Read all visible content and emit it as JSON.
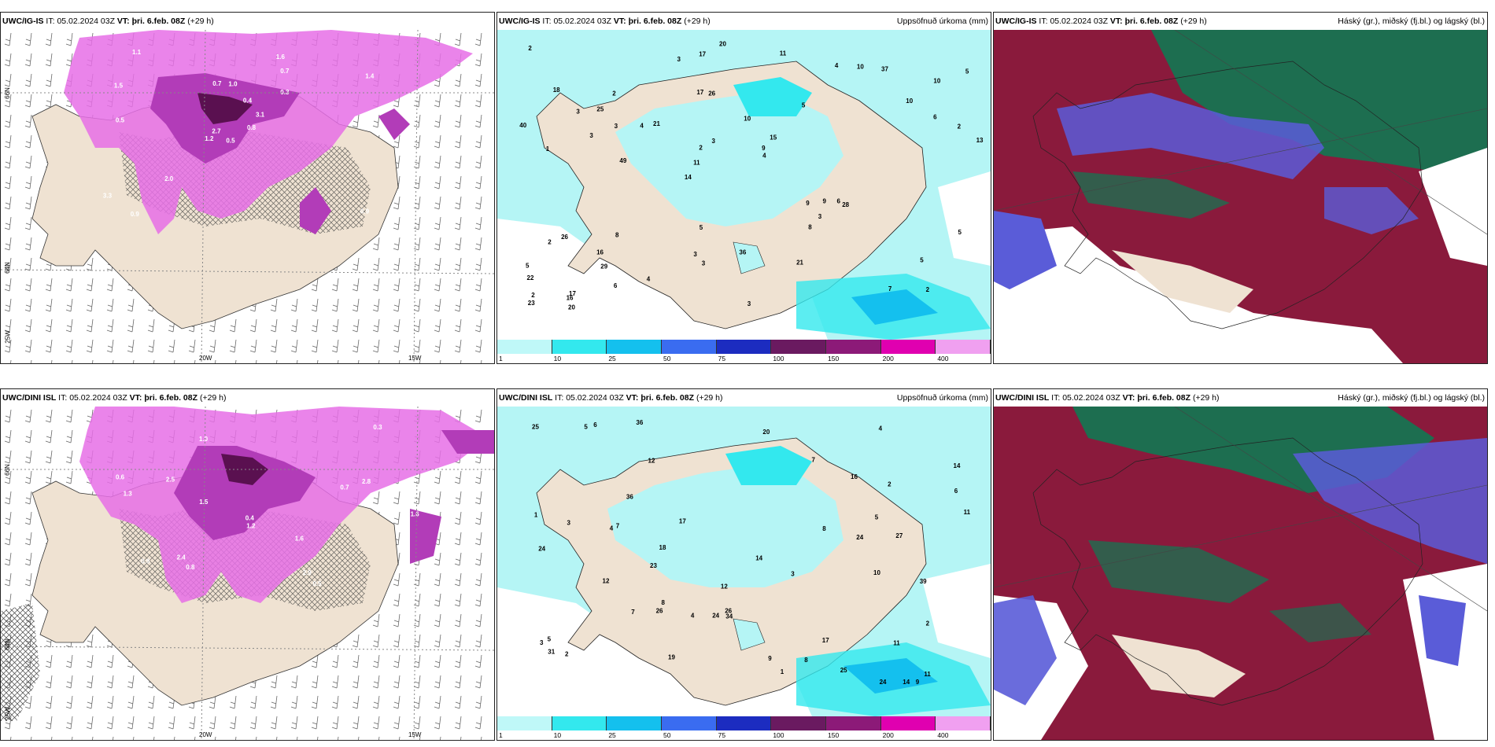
{
  "rows": [
    {
      "model": "UWC/IG-IS",
      "it_label": "IT:",
      "it_value": "05.02.2024 03Z",
      "vt_label": "VT:",
      "vt_value": "þri. 6.feb. 08Z",
      "lead": "(+29 h)",
      "axis_labels": {
        "lat66": "66N",
        "lat64": "64N",
        "lat25": "25W",
        "lon20": "20W",
        "lon15": "15W"
      },
      "precip_numbers": [
        "2",
        "1",
        "10",
        "14",
        "5",
        "17",
        "17",
        "10",
        "26",
        "21",
        "22",
        "29",
        "26",
        "15",
        "28",
        "18",
        "17",
        "13",
        "9",
        "6",
        "11",
        "3",
        "2",
        "2",
        "4",
        "8",
        "7",
        "5",
        "6",
        "3",
        "4",
        "3",
        "8",
        "6",
        "2",
        "9",
        "2",
        "3",
        "4",
        "2",
        "10",
        "5",
        "3",
        "21",
        "16",
        "20",
        "23",
        "36",
        "37",
        "20",
        "49",
        "40",
        "25",
        "10",
        "16",
        "11",
        "3",
        "3",
        "5",
        "5",
        "4",
        "9",
        "3",
        "5",
        "2",
        "3"
      ],
      "ice_numbers": [
        "0.5",
        "1.5",
        "2.7",
        "3.3",
        "3.1",
        "2.0",
        "1.6",
        "1.0",
        "0.7",
        "0.8",
        "1.1",
        "0.9",
        "0.5",
        "1.4",
        "1.2",
        "0.3",
        "0.9",
        "0.7",
        "0.4"
      ]
    },
    {
      "model": "UWC/DINI ISL",
      "it_label": "IT:",
      "it_value": "05.02.2024 03Z",
      "vt_label": "VT:",
      "vt_value": "þri. 6.feb. 08Z",
      "lead": "(+29 h)",
      "axis_labels": {
        "lat66": "66N",
        "lat64": "64N",
        "lat25": "25W",
        "lon20": "20W",
        "lon15": "15W"
      },
      "precip_numbers": [
        "12",
        "4",
        "5",
        "10",
        "9",
        "12",
        "24",
        "23",
        "26",
        "24",
        "27",
        "20",
        "25",
        "24",
        "18",
        "17",
        "14",
        "11",
        "14",
        "17",
        "14",
        "7",
        "8",
        "7",
        "11",
        "8",
        "9",
        "5",
        "2",
        "3",
        "8",
        "4",
        "2",
        "2",
        "16",
        "1",
        "3",
        "6",
        "12",
        "19",
        "24",
        "11",
        "39",
        "25",
        "34",
        "31",
        "26",
        "36",
        "36",
        "7",
        "1",
        "5",
        "3",
        "4",
        "6"
      ],
      "ice_numbers": [
        "0.5",
        "1.0",
        "2.4",
        "2.5",
        "2.8",
        "2.9",
        "1.6",
        "1.5",
        "1.2",
        "0.8",
        "0.9",
        "0.6",
        "0.4",
        "1.6",
        "0.7",
        "0.3",
        "1.3"
      ]
    }
  ],
  "panel_titles": {
    "precip": "Uppsöfnuð úrkoma (mm)",
    "clouds": "Háský (gr.), miðský (fj.bl.) og lágský (bl.)"
  },
  "colorbar": {
    "ticks": [
      "1",
      "10",
      "25",
      "50",
      "75",
      "100",
      "150",
      "200",
      "400"
    ],
    "colors": [
      "#bff8f8",
      "#33e8ee",
      "#14c0ee",
      "#3a6cf0",
      "#1c2cc0",
      "#6a1a60",
      "#8c1a78",
      "#e000b0",
      "#f0a0f0"
    ]
  },
  "colors": {
    "land": "#efe2d2",
    "ice_light": "#e66ee6",
    "ice_mid": "#b23cb8",
    "ice_dark": "#5a1050",
    "cyan": "#b5f5f5",
    "cloud_high": "#1d6e50",
    "cloud_mid": "#8a1a3c",
    "cloud_low": "#5a5cd8"
  }
}
